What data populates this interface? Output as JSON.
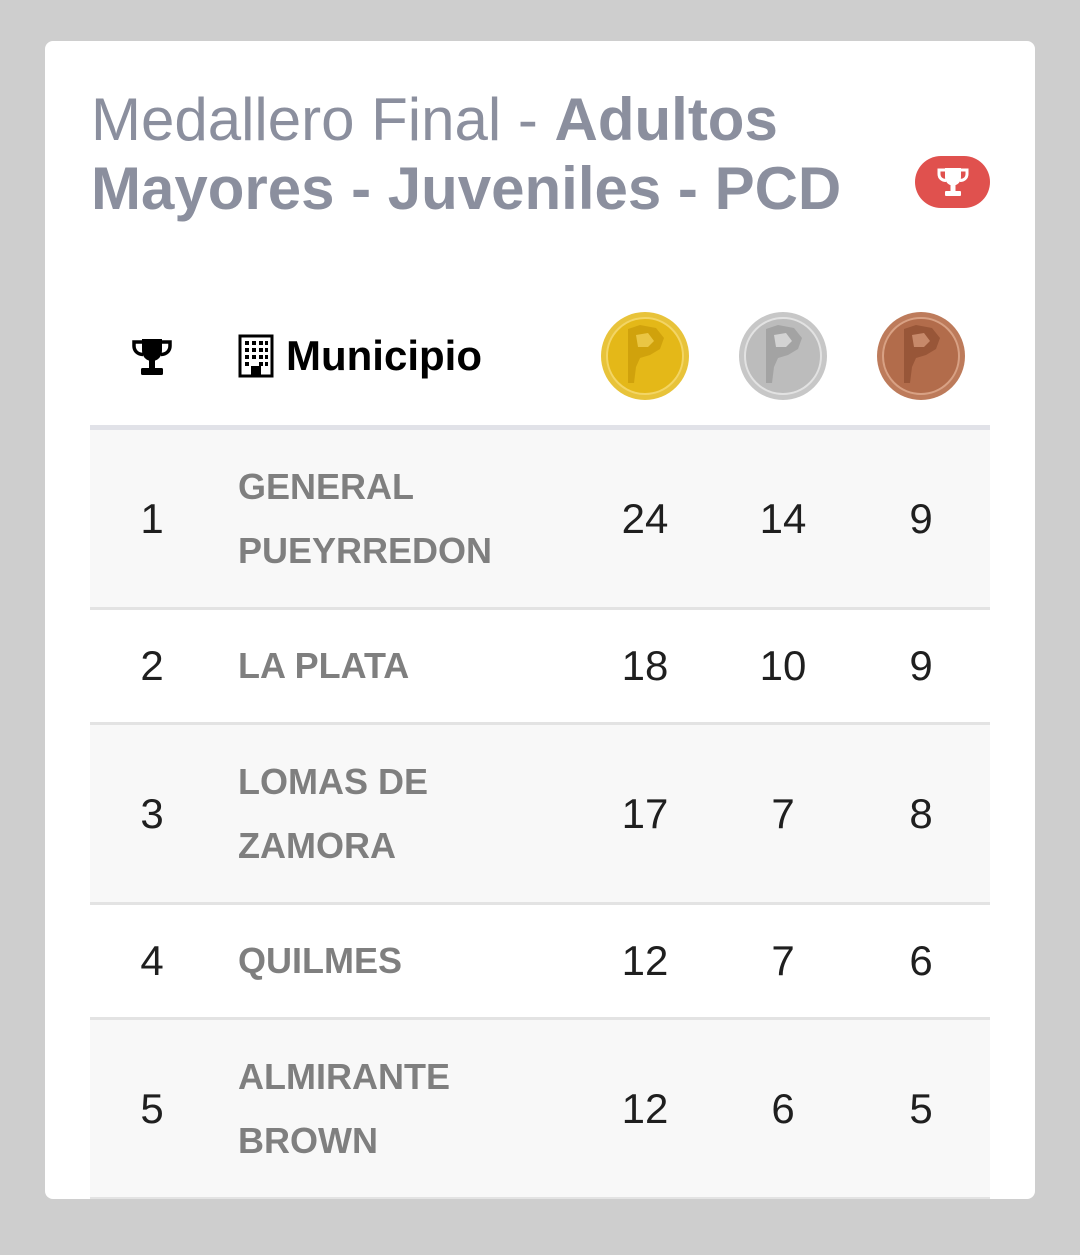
{
  "header": {
    "title_light": "Medallero Final - ",
    "title_bold": "Adultos Mayores - Juveniles - PCD",
    "badge_icon": "trophy-icon",
    "badge_color": "#e0514e"
  },
  "table": {
    "headers": {
      "rank_icon": "trophy-icon",
      "municipio_icon": "building-icon",
      "municipio_label": "Municipio",
      "gold_icon": "gold-medal-icon",
      "silver_icon": "silver-medal-icon",
      "bronze_icon": "bronze-medal-icon"
    },
    "rows": [
      {
        "rank": "1",
        "municipio": "GENERAL PUEYRREDON",
        "gold": "24",
        "silver": "14",
        "bronze": "9"
      },
      {
        "rank": "2",
        "municipio": "LA PLATA",
        "gold": "18",
        "silver": "10",
        "bronze": "9"
      },
      {
        "rank": "3",
        "municipio": "LOMAS DE ZAMORA",
        "gold": "17",
        "silver": "7",
        "bronze": "8"
      },
      {
        "rank": "4",
        "municipio": "QUILMES",
        "gold": "12",
        "silver": "7",
        "bronze": "6"
      },
      {
        "rank": "5",
        "municipio": "ALMIRANTE BROWN",
        "gold": "12",
        "silver": "6",
        "bronze": "5"
      }
    ]
  },
  "colors": {
    "title": "#8b8f9e",
    "gold": "#e6b91e",
    "silver": "#bdbdbd",
    "bronze": "#b0694a"
  }
}
